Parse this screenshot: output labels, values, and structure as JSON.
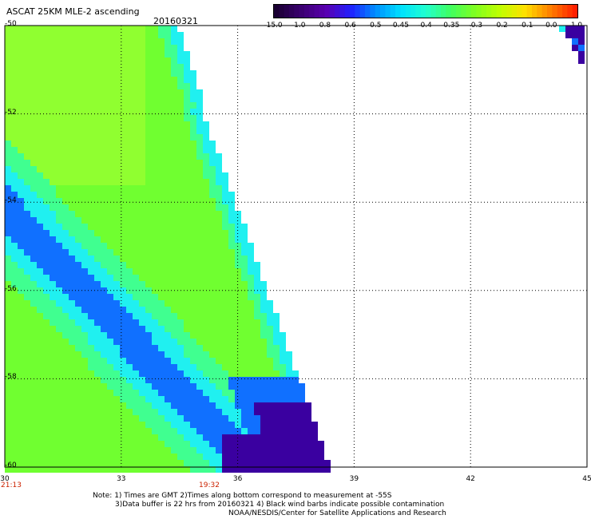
{
  "title": "ASCAT 25KM MLE-2 ascending",
  "date": "20160321",
  "colorbar": {
    "labels": [
      "-15.0",
      "-1.0",
      "-0.8",
      "-0.6",
      "-0.5",
      "-0.45",
      "-0.4",
      "-0.35",
      "-0.3",
      "-0.2",
      "-0.1",
      "0.0",
      "1.0"
    ],
    "colors": [
      "#1a0033",
      "#3a0070",
      "#5a00b0",
      "#2020ff",
      "#0090ff",
      "#00e0ff",
      "#20ffd0",
      "#40ff60",
      "#80ff20",
      "#c0ff00",
      "#ffe000",
      "#ff8000",
      "#ff2000"
    ]
  },
  "axes": {
    "y_labels": [
      "-50",
      "-52",
      "-54",
      "-56",
      "-58",
      "-60"
    ],
    "x_labels": [
      "30",
      "33",
      "36",
      "39",
      "42",
      "45"
    ],
    "lat_range": [
      -60,
      -50
    ],
    "lon_range": [
      30,
      45
    ]
  },
  "times": {
    "start": "21:13",
    "mid": "19:32"
  },
  "notes": {
    "line1": "Note: 1) Times are GMT 2)Times along bottom correspond to measurement at -55S",
    "line2": "3)Data buffer is 22 hrs from 20160321 4) Black wind barbs indicate possible contamination",
    "line3": "NOAA/NESDIS/Center for Satellite Applications and Research"
  }
}
